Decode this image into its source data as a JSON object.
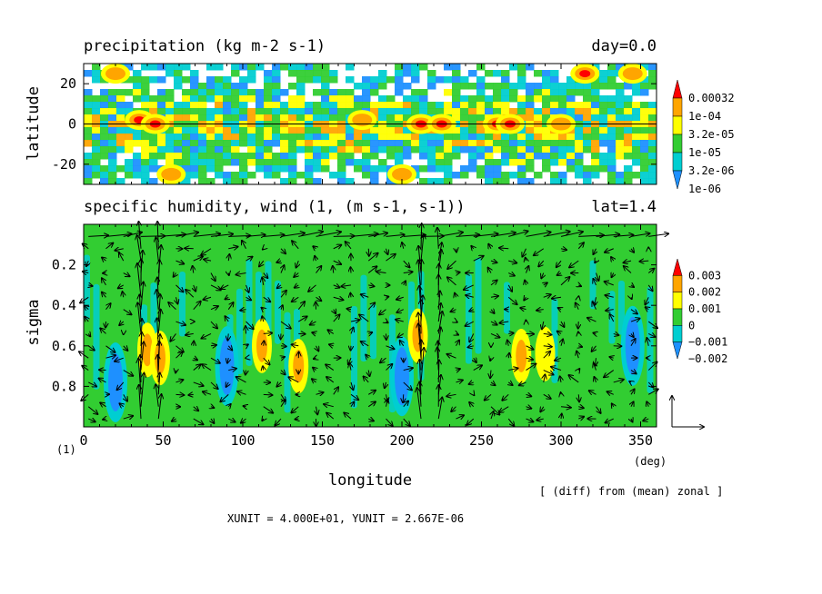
{
  "chart_data": [
    {
      "type": "heatmap",
      "title": "precipitation (kg m-2 s-1)",
      "title_right": "day=0.0",
      "ylabel": "latitude",
      "xlim": [
        0,
        360
      ],
      "ylim": [
        -30,
        30
      ],
      "yticks": [
        "20",
        "0",
        "-20"
      ],
      "ytick_values": [
        20,
        0,
        -20
      ],
      "colorbar": {
        "labels": [
          "0.00032",
          "1e-04",
          "3.2e-05",
          "1e-05",
          "3.2e-06",
          "1e-06"
        ],
        "colors": [
          "#ff0000",
          "#ffa500",
          "#ffff00",
          "#32cd32",
          "#00ced1",
          "#1e90ff"
        ]
      },
      "zero_line": true,
      "hotspots": [
        {
          "x": 35,
          "y": 2,
          "level": 0.00032
        },
        {
          "x": 45,
          "y": 0,
          "level": 0.00032
        },
        {
          "x": 20,
          "y": 25,
          "level": 0.0001
        },
        {
          "x": 55,
          "y": -25,
          "level": 0.0001
        },
        {
          "x": 212,
          "y": 0,
          "level": 0.00032
        },
        {
          "x": 225,
          "y": 0,
          "level": 0.00032
        },
        {
          "x": 260,
          "y": 0,
          "level": 0.00032
        },
        {
          "x": 268,
          "y": 0,
          "level": 0.00032
        },
        {
          "x": 315,
          "y": 25,
          "level": 0.00032
        },
        {
          "x": 345,
          "y": 25,
          "level": 0.0001
        },
        {
          "x": 200,
          "y": -25,
          "level": 0.0001
        },
        {
          "x": 175,
          "y": 2,
          "level": 0.0001
        },
        {
          "x": 300,
          "y": 0,
          "level": 0.0001
        }
      ]
    },
    {
      "type": "heatmap",
      "title": "specific humidity, wind (1, (m s-1, s-1))",
      "title_right": "lat=1.4",
      "xlabel": "longitude",
      "ylabel": "sigma",
      "xlim": [
        0,
        360
      ],
      "ylim": [
        1.0,
        0.0
      ],
      "xticks": [
        "0",
        "50",
        "100",
        "150",
        "200",
        "250",
        "300",
        "350"
      ],
      "xtick_values": [
        0,
        50,
        100,
        150,
        200,
        250,
        300,
        350
      ],
      "x_unit": "(deg)",
      "yticks": [
        "0.2",
        "0.4",
        "0.6",
        "0.8"
      ],
      "ytick_values": [
        0.2,
        0.4,
        0.6,
        0.8
      ],
      "colorbar": {
        "labels": [
          "0.003",
          "0.002",
          "0.001",
          "0",
          "−0.001",
          "−0.002"
        ],
        "colors": [
          "#ff0000",
          "#ffa500",
          "#ffff00",
          "#32cd32",
          "#00ced1",
          "#1e90ff"
        ]
      },
      "anomalies": [
        {
          "x": 20,
          "y": 0.78,
          "value": -0.002
        },
        {
          "x": 40,
          "y": 0.62,
          "value": 0.002
        },
        {
          "x": 48,
          "y": 0.66,
          "value": 0.002
        },
        {
          "x": 90,
          "y": 0.7,
          "value": -0.002
        },
        {
          "x": 112,
          "y": 0.6,
          "value": 0.002
        },
        {
          "x": 135,
          "y": 0.7,
          "value": 0.002
        },
        {
          "x": 200,
          "y": 0.75,
          "value": -0.002
        },
        {
          "x": 210,
          "y": 0.55,
          "value": 0.002
        },
        {
          "x": 275,
          "y": 0.65,
          "value": 0.002
        },
        {
          "x": 290,
          "y": 0.64,
          "value": 0.001
        },
        {
          "x": 345,
          "y": 0.6,
          "value": -0.002
        }
      ],
      "wind_vectors_hint": "wind vectors overlaid with strong updrafts near 40 and 215 deg longitude"
    }
  ],
  "figure_label": "(1)",
  "note": "[ (diff) from (mean) zonal ]",
  "units_line": "XUNIT = 4.000E+01, YUNIT = 2.667E-06"
}
